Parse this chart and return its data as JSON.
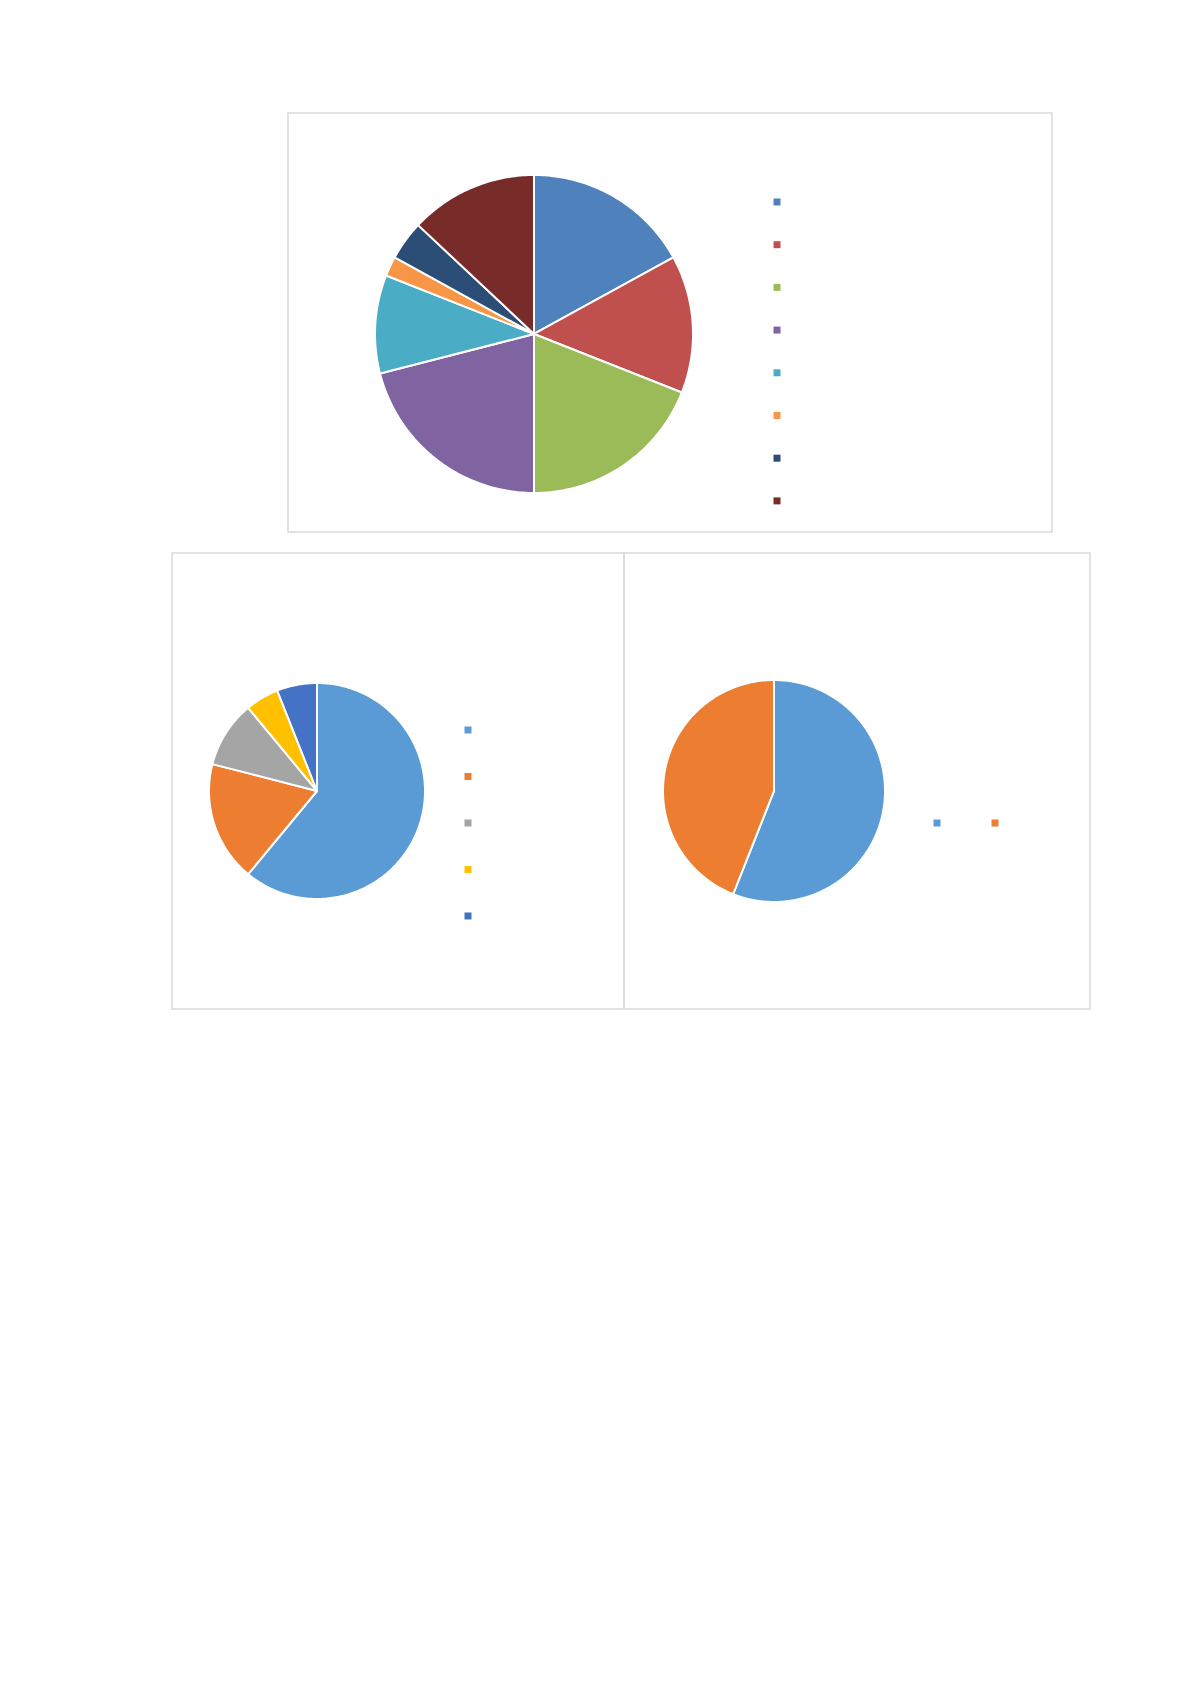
{
  "chart_data": [
    {
      "type": "pie",
      "categories": [
        null,
        null,
        null,
        null,
        null,
        null,
        null,
        null
      ],
      "values": [
        17,
        14,
        19,
        21,
        10,
        2,
        4,
        13
      ],
      "colors": [
        "#4f81bd",
        "#c0504d",
        "#9bbb59",
        "#8064a2",
        "#4bacc6",
        "#f79646",
        "#2c4d75",
        "#772c2a"
      ]
    },
    {
      "type": "pie",
      "categories": [
        null,
        null,
        null,
        null,
        null
      ],
      "values": [
        61,
        18,
        10,
        5,
        6
      ],
      "colors": [
        "#5b9bd5",
        "#ed7d31",
        "#a5a5a5",
        "#ffc000",
        "#4472c4"
      ]
    },
    {
      "type": "pie",
      "categories": [
        null,
        null
      ],
      "values": [
        56,
        44
      ],
      "colors": [
        "#5b9bd5",
        "#ed7d31"
      ]
    }
  ]
}
